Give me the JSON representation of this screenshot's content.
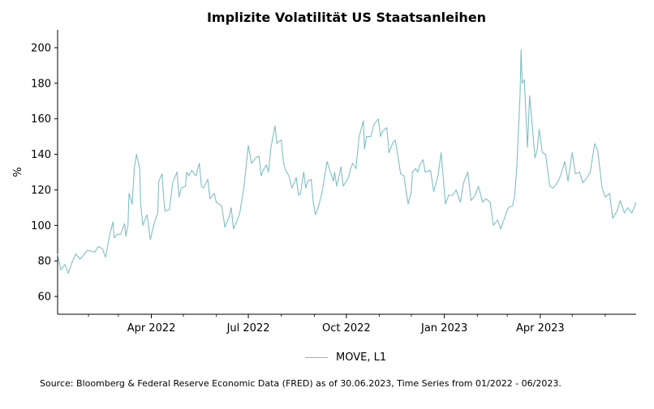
{
  "chart_data": {
    "type": "line",
    "title": "Implizite Volatilität US Staatsanleihen",
    "ylabel": "%",
    "xlabel": "",
    "ylim": [
      50,
      210
    ],
    "xlim": [
      "2022-01-03",
      "2023-06-30"
    ],
    "yticks": [
      60,
      80,
      100,
      120,
      140,
      160,
      180,
      200
    ],
    "xticks": [
      {
        "date": "2022-04-01",
        "label": "Apr 2022"
      },
      {
        "date": "2022-07-01",
        "label": "Jul 2022"
      },
      {
        "date": "2022-10-01",
        "label": "Oct 2022"
      },
      {
        "date": "2023-01-01",
        "label": "Jan 2023"
      },
      {
        "date": "2023-04-01",
        "label": "Apr 2023"
      }
    ],
    "grid": false,
    "legend_position": "bottom-center",
    "series": [
      {
        "name": "MOVE, L1",
        "color": "#7fbfc4",
        "points": [
          [
            "2022-01-03",
            84
          ],
          [
            "2022-01-06",
            75
          ],
          [
            "2022-01-10",
            78
          ],
          [
            "2022-01-13",
            73
          ],
          [
            "2022-01-17",
            80
          ],
          [
            "2022-01-20",
            84
          ],
          [
            "2022-01-24",
            81
          ],
          [
            "2022-01-27",
            83
          ],
          [
            "2022-01-31",
            86
          ],
          [
            "2022-02-07",
            85
          ],
          [
            "2022-02-10",
            88
          ],
          [
            "2022-02-14",
            87
          ],
          [
            "2022-02-17",
            82
          ],
          [
            "2022-02-21",
            95
          ],
          [
            "2022-02-24",
            102
          ],
          [
            "2022-02-25",
            93
          ],
          [
            "2022-02-28",
            95
          ],
          [
            "2022-03-03",
            95
          ],
          [
            "2022-03-07",
            101
          ],
          [
            "2022-03-08",
            94
          ],
          [
            "2022-03-10",
            100
          ],
          [
            "2022-03-11",
            118
          ],
          [
            "2022-03-14",
            112
          ],
          [
            "2022-03-16",
            132
          ],
          [
            "2022-03-18",
            140
          ],
          [
            "2022-03-21",
            132
          ],
          [
            "2022-03-22",
            112
          ],
          [
            "2022-03-24",
            100
          ],
          [
            "2022-03-28",
            106
          ],
          [
            "2022-03-31",
            92
          ],
          [
            "2022-04-04",
            102
          ],
          [
            "2022-04-07",
            107
          ],
          [
            "2022-04-08",
            125
          ],
          [
            "2022-04-11",
            129
          ],
          [
            "2022-04-13",
            112
          ],
          [
            "2022-04-14",
            108
          ],
          [
            "2022-04-18",
            109
          ],
          [
            "2022-04-21",
            124
          ],
          [
            "2022-04-25",
            130
          ],
          [
            "2022-04-27",
            116
          ],
          [
            "2022-04-29",
            121
          ],
          [
            "2022-05-03",
            122
          ],
          [
            "2022-05-04",
            130
          ],
          [
            "2022-05-06",
            128
          ],
          [
            "2022-05-09",
            131
          ],
          [
            "2022-05-11",
            129
          ],
          [
            "2022-05-13",
            128
          ],
          [
            "2022-05-16",
            135
          ],
          [
            "2022-05-18",
            122
          ],
          [
            "2022-05-20",
            121
          ],
          [
            "2022-05-24",
            126
          ],
          [
            "2022-05-26",
            115
          ],
          [
            "2022-05-30",
            118
          ],
          [
            "2022-06-01",
            113
          ],
          [
            "2022-06-06",
            111
          ],
          [
            "2022-06-09",
            99
          ],
          [
            "2022-06-13",
            105
          ],
          [
            "2022-06-15",
            110
          ],
          [
            "2022-06-17",
            98
          ],
          [
            "2022-06-20",
            102
          ],
          [
            "2022-06-23",
            107
          ],
          [
            "2022-06-27",
            122
          ],
          [
            "2022-07-01",
            145
          ],
          [
            "2022-07-04",
            135
          ],
          [
            "2022-07-08",
            138
          ],
          [
            "2022-07-11",
            139
          ],
          [
            "2022-07-13",
            128
          ],
          [
            "2022-07-15",
            131
          ],
          [
            "2022-07-18",
            134
          ],
          [
            "2022-07-20",
            130
          ],
          [
            "2022-07-22",
            143
          ],
          [
            "2022-07-26",
            156
          ],
          [
            "2022-07-28",
            146
          ],
          [
            "2022-07-29",
            147
          ],
          [
            "2022-08-01",
            148
          ],
          [
            "2022-08-03",
            135
          ],
          [
            "2022-08-05",
            131
          ],
          [
            "2022-08-08",
            128
          ],
          [
            "2022-08-11",
            121
          ],
          [
            "2022-08-15",
            127
          ],
          [
            "2022-08-17",
            117
          ],
          [
            "2022-08-19",
            118
          ],
          [
            "2022-08-22",
            130
          ],
          [
            "2022-08-24",
            121
          ],
          [
            "2022-08-26",
            125
          ],
          [
            "2022-08-29",
            126
          ],
          [
            "2022-08-31",
            113
          ],
          [
            "2022-09-02",
            106
          ],
          [
            "2022-09-05",
            111
          ],
          [
            "2022-09-08",
            118
          ],
          [
            "2022-09-13",
            136
          ],
          [
            "2022-09-16",
            130
          ],
          [
            "2022-09-19",
            125
          ],
          [
            "2022-09-20",
            130
          ],
          [
            "2022-09-22",
            122
          ],
          [
            "2022-09-26",
            133
          ],
          [
            "2022-09-28",
            122
          ],
          [
            "2022-10-03",
            127
          ],
          [
            "2022-10-05",
            132
          ],
          [
            "2022-10-07",
            135
          ],
          [
            "2022-10-10",
            132
          ],
          [
            "2022-10-13",
            150
          ],
          [
            "2022-10-17",
            159
          ],
          [
            "2022-10-18",
            143
          ],
          [
            "2022-10-20",
            150
          ],
          [
            "2022-10-24",
            150
          ],
          [
            "2022-10-27",
            157
          ],
          [
            "2022-10-31",
            160
          ],
          [
            "2022-11-02",
            150
          ],
          [
            "2022-11-04",
            153
          ],
          [
            "2022-11-08",
            155
          ],
          [
            "2022-11-10",
            141
          ],
          [
            "2022-11-14",
            147
          ],
          [
            "2022-11-16",
            148
          ],
          [
            "2022-11-21",
            129
          ],
          [
            "2022-11-24",
            128
          ],
          [
            "2022-11-28",
            112
          ],
          [
            "2022-12-01",
            119
          ],
          [
            "2022-12-02",
            130
          ],
          [
            "2022-12-05",
            132
          ],
          [
            "2022-12-07",
            130
          ],
          [
            "2022-12-09",
            134
          ],
          [
            "2022-12-12",
            137
          ],
          [
            "2022-12-14",
            130
          ],
          [
            "2022-12-19",
            131
          ],
          [
            "2022-12-22",
            119
          ],
          [
            "2022-12-26",
            128
          ],
          [
            "2022-12-29",
            141
          ],
          [
            "2023-01-02",
            112
          ],
          [
            "2023-01-05",
            117
          ],
          [
            "2023-01-09",
            117
          ],
          [
            "2023-01-12",
            120
          ],
          [
            "2023-01-16",
            113
          ],
          [
            "2023-01-19",
            124
          ],
          [
            "2023-01-23",
            130
          ],
          [
            "2023-01-26",
            114
          ],
          [
            "2023-01-30",
            117
          ],
          [
            "2023-02-02",
            122
          ],
          [
            "2023-02-06",
            113
          ],
          [
            "2023-02-09",
            115
          ],
          [
            "2023-02-13",
            113
          ],
          [
            "2023-02-16",
            100
          ],
          [
            "2023-02-20",
            103
          ],
          [
            "2023-02-23",
            98
          ],
          [
            "2023-02-27",
            105
          ],
          [
            "2023-03-02",
            110
          ],
          [
            "2023-03-06",
            111
          ],
          [
            "2023-03-08",
            117
          ],
          [
            "2023-03-10",
            133
          ],
          [
            "2023-03-13",
            173
          ],
          [
            "2023-03-14",
            199
          ],
          [
            "2023-03-15",
            180
          ],
          [
            "2023-03-17",
            182
          ],
          [
            "2023-03-20",
            144
          ],
          [
            "2023-03-22",
            173
          ],
          [
            "2023-03-24",
            160
          ],
          [
            "2023-03-27",
            138
          ],
          [
            "2023-03-29",
            142
          ],
          [
            "2023-03-31",
            154
          ],
          [
            "2023-04-03",
            141
          ],
          [
            "2023-04-06",
            140
          ],
          [
            "2023-04-10",
            122
          ],
          [
            "2023-04-13",
            121
          ],
          [
            "2023-04-17",
            124
          ],
          [
            "2023-04-20",
            128
          ],
          [
            "2023-04-24",
            136
          ],
          [
            "2023-04-27",
            125
          ],
          [
            "2023-05-01",
            141
          ],
          [
            "2023-05-04",
            129
          ],
          [
            "2023-05-08",
            130
          ],
          [
            "2023-05-11",
            124
          ],
          [
            "2023-05-15",
            127
          ],
          [
            "2023-05-18",
            130
          ],
          [
            "2023-05-22",
            146
          ],
          [
            "2023-05-25",
            142
          ],
          [
            "2023-05-29",
            121
          ],
          [
            "2023-06-01",
            116
          ],
          [
            "2023-06-05",
            118
          ],
          [
            "2023-06-08",
            104
          ],
          [
            "2023-06-12",
            108
          ],
          [
            "2023-06-15",
            114
          ],
          [
            "2023-06-19",
            107
          ],
          [
            "2023-06-22",
            110
          ],
          [
            "2023-06-26",
            107
          ],
          [
            "2023-06-30",
            113
          ]
        ]
      }
    ]
  },
  "source_note": "Source: Bloomberg & Federal Reserve Economic Data (FRED) as of 30.06.2023, Time Series from 01/2022 - 06/2023."
}
